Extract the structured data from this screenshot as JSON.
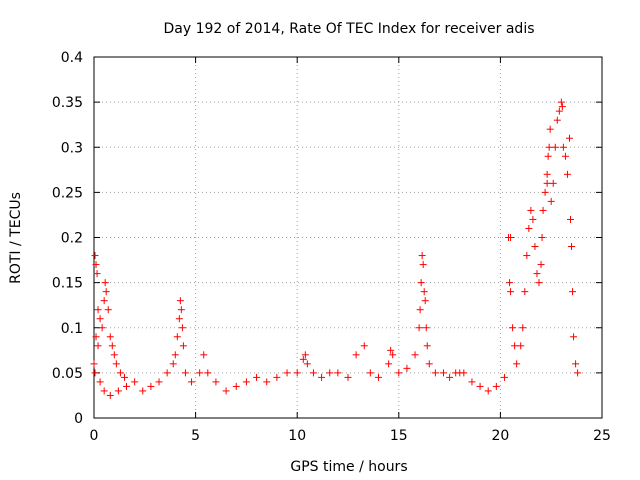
{
  "chart_data": {
    "type": "scatter",
    "title": "Day 192 of 2014, Rate Of TEC Index for receiver adis",
    "xlabel": "GPS time / hours",
    "ylabel": "ROTI / TECUs",
    "xlim": [
      0,
      25
    ],
    "ylim": [
      0,
      0.4
    ],
    "x_ticks": [
      0,
      5,
      10,
      15,
      20,
      25
    ],
    "x_tick_labels": [
      "0",
      "5",
      "10",
      "15",
      "20",
      "25"
    ],
    "y_ticks": [
      0,
      0.05,
      0.1,
      0.15,
      0.2,
      0.25,
      0.3,
      0.35,
      0.4
    ],
    "y_tick_labels": [
      "0",
      "0.05",
      "0.1",
      "0.15",
      "0.2",
      "0.25",
      "0.3",
      "0.35",
      "0.4"
    ],
    "grid": true,
    "marker": "+",
    "marker_color": "#ff0000",
    "series": [
      {
        "name": "ROTI",
        "color": "#ff0000",
        "points": [
          [
            0.05,
            0.18
          ],
          [
            0.1,
            0.17
          ],
          [
            0.15,
            0.16
          ],
          [
            0.2,
            0.12
          ],
          [
            0.3,
            0.11
          ],
          [
            0.1,
            0.09
          ],
          [
            0.2,
            0.08
          ],
          [
            0.4,
            0.1
          ],
          [
            0.5,
            0.13
          ],
          [
            0.55,
            0.15
          ],
          [
            0.6,
            0.14
          ],
          [
            0.7,
            0.12
          ],
          [
            0.8,
            0.09
          ],
          [
            0.9,
            0.08
          ],
          [
            1.0,
            0.07
          ],
          [
            1.1,
            0.06
          ],
          [
            1.3,
            0.05
          ],
          [
            1.5,
            0.045
          ],
          [
            0.0,
            0.06
          ],
          [
            0.05,
            0.05
          ],
          [
            0.3,
            0.04
          ],
          [
            0.5,
            0.03
          ],
          [
            0.8,
            0.025
          ],
          [
            1.2,
            0.03
          ],
          [
            1.6,
            0.035
          ],
          [
            2.0,
            0.04
          ],
          [
            2.4,
            0.03
          ],
          [
            2.8,
            0.035
          ],
          [
            3.2,
            0.04
          ],
          [
            3.6,
            0.05
          ],
          [
            3.9,
            0.06
          ],
          [
            4.0,
            0.07
          ],
          [
            4.1,
            0.09
          ],
          [
            4.2,
            0.11
          ],
          [
            4.25,
            0.13
          ],
          [
            4.3,
            0.12
          ],
          [
            4.35,
            0.1
          ],
          [
            4.4,
            0.08
          ],
          [
            4.5,
            0.05
          ],
          [
            4.8,
            0.04
          ],
          [
            5.2,
            0.05
          ],
          [
            5.4,
            0.07
          ],
          [
            5.6,
            0.05
          ],
          [
            6.0,
            0.04
          ],
          [
            6.5,
            0.03
          ],
          [
            7.0,
            0.035
          ],
          [
            7.5,
            0.04
          ],
          [
            8.0,
            0.045
          ],
          [
            8.5,
            0.04
          ],
          [
            9.0,
            0.045
          ],
          [
            9.5,
            0.05
          ],
          [
            10.0,
            0.05
          ],
          [
            10.3,
            0.065
          ],
          [
            10.4,
            0.07
          ],
          [
            10.5,
            0.06
          ],
          [
            10.8,
            0.05
          ],
          [
            11.2,
            0.045
          ],
          [
            11.6,
            0.05
          ],
          [
            12.0,
            0.05
          ],
          [
            12.5,
            0.045
          ],
          [
            12.9,
            0.07
          ],
          [
            13.3,
            0.08
          ],
          [
            13.6,
            0.05
          ],
          [
            14.0,
            0.045
          ],
          [
            14.5,
            0.06
          ],
          [
            14.6,
            0.075
          ],
          [
            14.7,
            0.07
          ],
          [
            15.0,
            0.05
          ],
          [
            15.4,
            0.055
          ],
          [
            15.8,
            0.07
          ],
          [
            16.0,
            0.1
          ],
          [
            16.05,
            0.12
          ],
          [
            16.1,
            0.15
          ],
          [
            16.15,
            0.18
          ],
          [
            16.2,
            0.17
          ],
          [
            16.25,
            0.14
          ],
          [
            16.3,
            0.13
          ],
          [
            16.35,
            0.1
          ],
          [
            16.4,
            0.08
          ],
          [
            16.5,
            0.06
          ],
          [
            16.8,
            0.05
          ],
          [
            17.2,
            0.05
          ],
          [
            17.5,
            0.045
          ],
          [
            17.8,
            0.05
          ],
          [
            18.0,
            0.05
          ],
          [
            18.2,
            0.05
          ],
          [
            18.6,
            0.04
          ],
          [
            19.0,
            0.035
          ],
          [
            19.4,
            0.03
          ],
          [
            19.8,
            0.035
          ],
          [
            20.2,
            0.045
          ],
          [
            20.4,
            0.2
          ],
          [
            20.5,
            0.2
          ],
          [
            20.45,
            0.15
          ],
          [
            20.5,
            0.14
          ],
          [
            20.6,
            0.1
          ],
          [
            20.7,
            0.08
          ],
          [
            20.8,
            0.06
          ],
          [
            21.0,
            0.08
          ],
          [
            21.1,
            0.1
          ],
          [
            21.2,
            0.14
          ],
          [
            21.3,
            0.18
          ],
          [
            21.4,
            0.21
          ],
          [
            21.5,
            0.23
          ],
          [
            21.6,
            0.22
          ],
          [
            21.7,
            0.19
          ],
          [
            21.8,
            0.16
          ],
          [
            21.9,
            0.15
          ],
          [
            22.0,
            0.17
          ],
          [
            22.05,
            0.2
          ],
          [
            22.1,
            0.23
          ],
          [
            22.2,
            0.25
          ],
          [
            22.3,
            0.27
          ],
          [
            22.35,
            0.29
          ],
          [
            22.4,
            0.3
          ],
          [
            22.45,
            0.32
          ],
          [
            22.3,
            0.26
          ],
          [
            22.5,
            0.24
          ],
          [
            22.6,
            0.26
          ],
          [
            22.7,
            0.3
          ],
          [
            22.8,
            0.33
          ],
          [
            22.9,
            0.34
          ],
          [
            23.0,
            0.35
          ],
          [
            23.05,
            0.345
          ],
          [
            23.1,
            0.3
          ],
          [
            23.2,
            0.29
          ],
          [
            23.3,
            0.27
          ],
          [
            23.4,
            0.31
          ],
          [
            23.45,
            0.22
          ],
          [
            23.5,
            0.19
          ],
          [
            23.55,
            0.14
          ],
          [
            23.6,
            0.09
          ],
          [
            23.7,
            0.06
          ],
          [
            23.8,
            0.05
          ]
        ]
      }
    ]
  }
}
